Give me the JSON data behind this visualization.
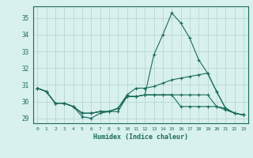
{
  "x": [
    0,
    1,
    2,
    3,
    4,
    5,
    6,
    7,
    8,
    9,
    10,
    11,
    12,
    13,
    14,
    15,
    16,
    17,
    18,
    19,
    20,
    21,
    22,
    23
  ],
  "series": [
    [
      30.8,
      30.6,
      29.9,
      29.9,
      29.7,
      29.1,
      29.0,
      29.3,
      29.4,
      29.4,
      30.3,
      30.3,
      30.4,
      32.8,
      34.0,
      35.3,
      34.7,
      33.8,
      32.5,
      31.7,
      30.6,
      29.6,
      29.3,
      29.2
    ],
    [
      30.8,
      30.6,
      29.9,
      29.9,
      29.7,
      29.3,
      29.3,
      29.4,
      29.4,
      29.6,
      30.4,
      30.8,
      30.8,
      30.9,
      31.1,
      31.3,
      31.4,
      31.5,
      31.6,
      31.7,
      30.6,
      29.6,
      29.3,
      29.2
    ],
    [
      30.8,
      30.6,
      29.9,
      29.9,
      29.7,
      29.3,
      29.3,
      29.4,
      29.4,
      29.6,
      30.3,
      30.3,
      30.4,
      30.4,
      30.4,
      30.4,
      29.7,
      29.7,
      29.7,
      29.7,
      29.7,
      29.6,
      29.3,
      29.2
    ],
    [
      30.8,
      30.6,
      29.9,
      29.9,
      29.7,
      29.3,
      29.3,
      29.4,
      29.4,
      29.6,
      30.3,
      30.3,
      30.4,
      30.4,
      30.4,
      30.4,
      30.4,
      30.4,
      30.4,
      30.4,
      29.7,
      29.5,
      29.3,
      29.2
    ]
  ],
  "line_color": "#1a6b5a",
  "bg_color": "#d8f0ee",
  "grid_color": "#b8d8d4",
  "xlabel": "Humidex (Indice chaleur)",
  "ylabel_ticks": [
    29,
    30,
    31,
    32,
    33,
    34,
    35
  ],
  "xlabel_ticks": [
    0,
    1,
    2,
    3,
    4,
    5,
    6,
    7,
    8,
    9,
    10,
    11,
    12,
    13,
    14,
    15,
    16,
    17,
    18,
    19,
    20,
    21,
    22,
    23
  ],
  "ylim": [
    28.7,
    35.7
  ],
  "xlim": [
    -0.5,
    23.5
  ]
}
